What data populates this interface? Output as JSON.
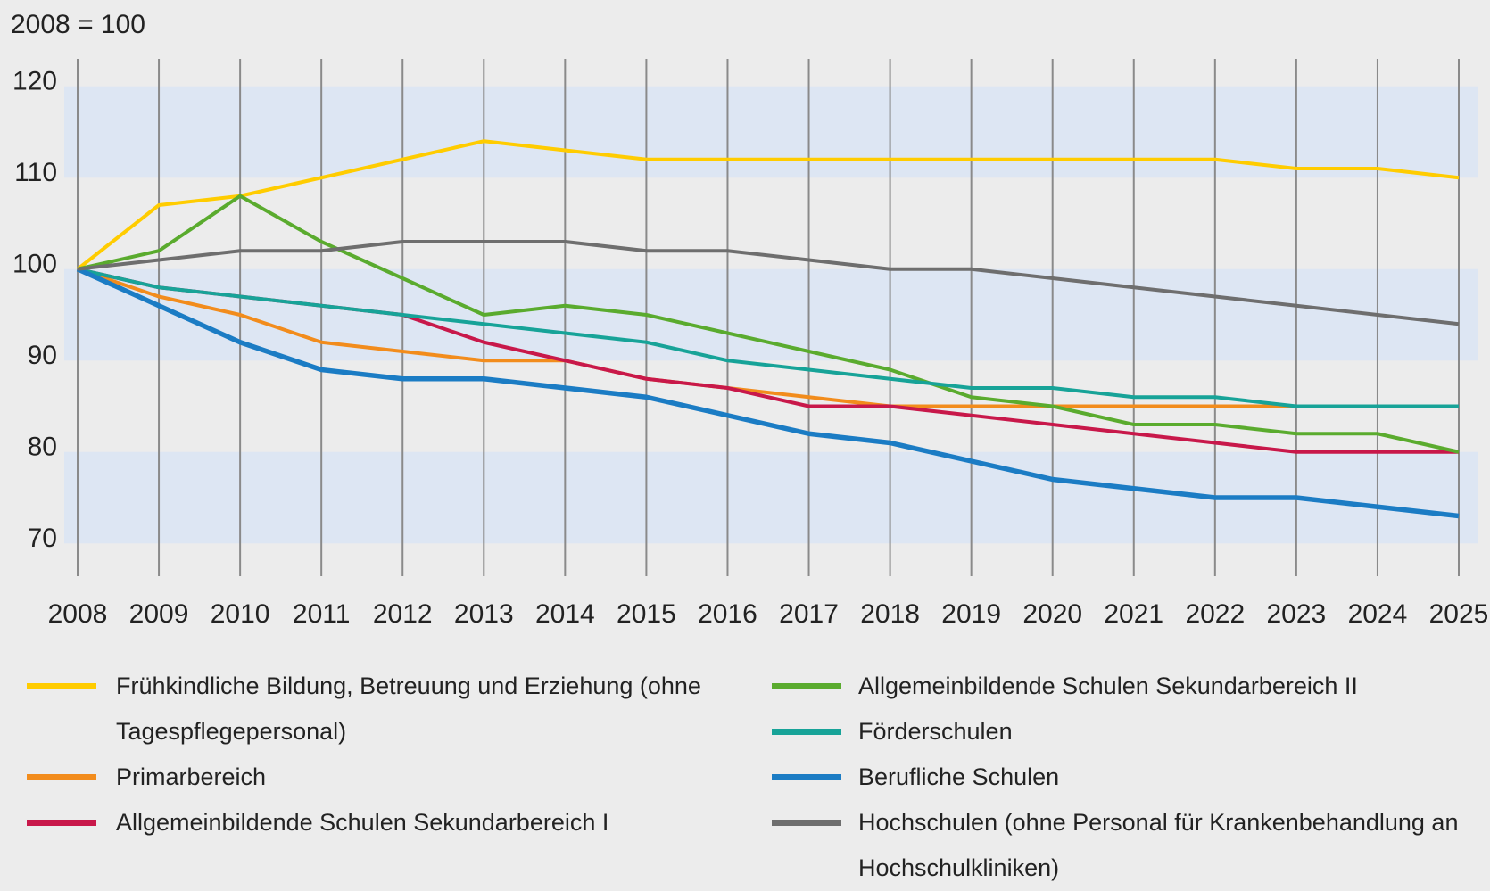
{
  "chart_data": {
    "type": "line",
    "ylabel": "2008 = 100",
    "categories": [
      "2008",
      "2009",
      "2010",
      "2011",
      "2012",
      "2013",
      "2014",
      "2015",
      "2016",
      "2017",
      "2018",
      "2019",
      "2020",
      "2021",
      "2022",
      "2023",
      "2024",
      "2025"
    ],
    "ylim": [
      67,
      123
    ],
    "yticks": [
      70,
      80,
      90,
      100,
      110,
      120
    ],
    "grid": true,
    "series": [
      {
        "name": "Frühkindliche Bildung, Betreuung und Erziehung (ohne Tagespflegepersonal)",
        "color": "#ffcc00",
        "values": [
          100,
          107,
          108,
          110,
          112,
          114,
          113,
          112,
          112,
          112,
          112,
          112,
          112,
          112,
          112,
          111,
          111,
          110
        ]
      },
      {
        "name": "Primarbereich",
        "color": "#f28c1c",
        "values": [
          100,
          97,
          95,
          92,
          91,
          90,
          90,
          88,
          87,
          86,
          85,
          85,
          85,
          85,
          85,
          85,
          85,
          85
        ]
      },
      {
        "name": "Allgemeinbildende Schulen Sekundarbereich I",
        "color": "#c8184a",
        "values": [
          100,
          98,
          97,
          96,
          95,
          92,
          90,
          88,
          87,
          85,
          85,
          84,
          83,
          82,
          81,
          80,
          80,
          80
        ]
      },
      {
        "name": "Allgemeinbildende Schulen Sekundarbereich II",
        "color": "#5aab2e",
        "values": [
          100,
          102,
          108,
          103,
          99,
          95,
          96,
          95,
          93,
          91,
          89,
          86,
          85,
          83,
          83,
          82,
          82,
          80
        ]
      },
      {
        "name": "Förderschulen",
        "color": "#17a398",
        "values": [
          100,
          98,
          97,
          96,
          95,
          94,
          93,
          92,
          90,
          89,
          88,
          87,
          87,
          86,
          86,
          85,
          85,
          85
        ]
      },
      {
        "name": "Berufliche Schulen",
        "color": "#1b7cc4",
        "values": [
          100,
          96,
          92,
          89,
          88,
          88,
          87,
          86,
          84,
          82,
          81,
          79,
          77,
          76,
          75,
          75,
          74,
          73
        ]
      },
      {
        "name": "Hochschulen (ohne Personal für Krankenbehandlung an Hochschulkliniken)",
        "color": "#6e6e6e",
        "values": [
          100,
          101,
          102,
          102,
          103,
          103,
          103,
          102,
          102,
          101,
          100,
          100,
          99,
          98,
          97,
          96,
          95,
          94
        ]
      }
    ]
  }
}
